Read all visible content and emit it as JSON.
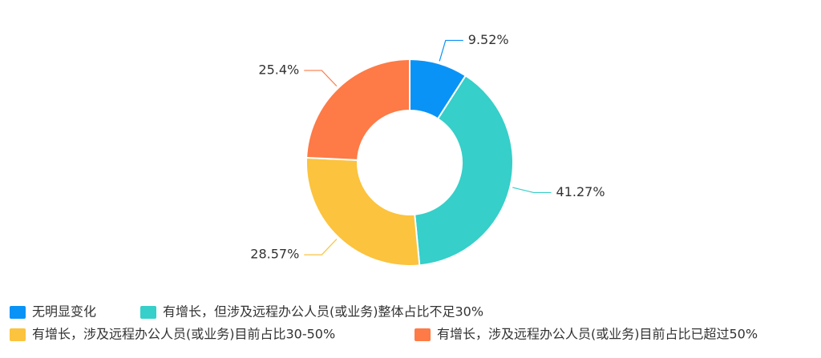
{
  "chart_data": {
    "type": "donut",
    "categories": [
      "无明显变化",
      "有增长，但涉及远程办公人员(或业务)整体占比不足30%",
      "有增长，涉及远程办公人员(或业务)目前占比30-50%",
      "有增长，涉及远程办公人员(或业务)目前占比已超过50%"
    ],
    "values": [
      9.52,
      41.27,
      28.57,
      25.4
    ],
    "value_labels": [
      "9.52%",
      "41.27%",
      "28.57%",
      "25.4%"
    ],
    "colors": [
      "#0a93f7",
      "#36cfc9",
      "#fbc33e",
      "#fe7a46"
    ],
    "legend": "bottom-left"
  }
}
